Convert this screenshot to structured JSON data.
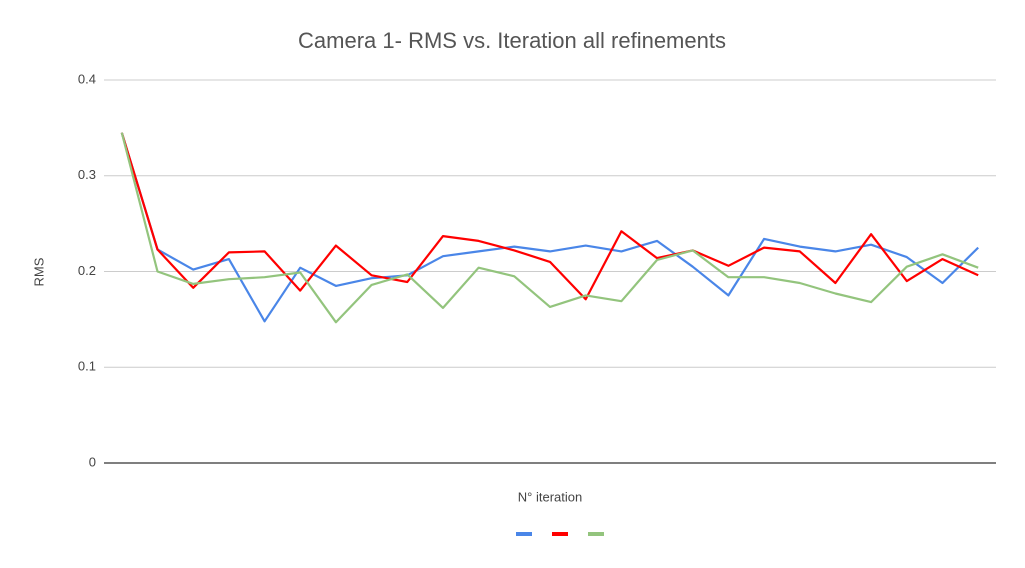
{
  "chart_data": {
    "type": "line",
    "title": "Camera 1- RMS vs. Iteration all refinements",
    "x_label": "N° iteration",
    "y_label": "RMS",
    "categories": [
      null,
      null,
      null,
      null,
      null,
      null,
      null,
      null,
      null,
      null,
      null,
      null,
      null,
      null,
      null,
      null,
      null,
      null,
      null,
      null,
      null,
      null,
      null,
      null,
      null
    ],
    "series": [
      {
        "color": "#4a86e8",
        "values": [
          0.345,
          0.223,
          0.202,
          0.213,
          0.148,
          0.204,
          0.185,
          0.193,
          0.196,
          0.216,
          0.221,
          0.226,
          0.221,
          0.227,
          0.221,
          0.232,
          0.205,
          0.175,
          0.234,
          0.226,
          0.221,
          0.228,
          0.215,
          0.188,
          0.225
        ]
      },
      {
        "color": "#ff0000",
        "values": [
          0.345,
          0.223,
          0.183,
          0.22,
          0.221,
          0.18,
          0.227,
          0.196,
          0.189,
          0.237,
          0.232,
          0.222,
          0.21,
          0.171,
          0.242,
          0.214,
          0.222,
          0.206,
          0.225,
          0.221,
          0.188,
          0.239,
          0.19,
          0.213,
          0.196
        ]
      },
      {
        "color": "#93c47d",
        "values": [
          0.345,
          0.2,
          0.187,
          0.192,
          0.194,
          0.199,
          0.147,
          0.186,
          0.197,
          0.162,
          0.204,
          0.195,
          0.163,
          0.175,
          0.169,
          0.212,
          0.222,
          0.194,
          0.194,
          0.188,
          0.177,
          0.168,
          0.205,
          0.218,
          0.204
        ]
      }
    ],
    "ylim": [
      0,
      0.4
    ],
    "yticks": [
      0,
      0.1,
      0.2,
      0.3,
      0.4
    ],
    "grid": true,
    "legend": "bottom"
  }
}
